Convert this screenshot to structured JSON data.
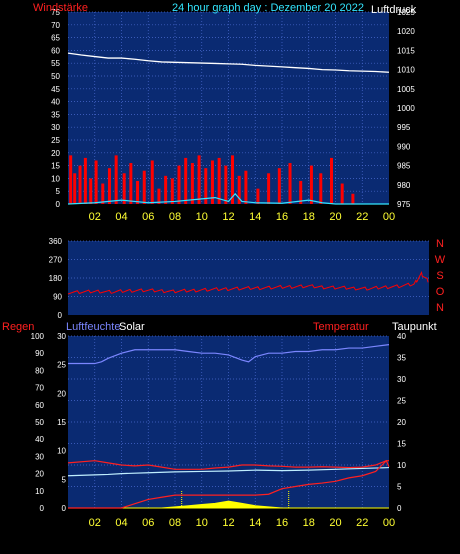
{
  "header": {
    "left_label": "Windstärke",
    "title": "24 hour graph day : Dezember 20 2022",
    "right_label": "Luftdruck"
  },
  "colors": {
    "background": "#000000",
    "plot_bg": "#0a2a72",
    "grid": "#4a6ad0",
    "axis_text": "#ffffff",
    "xtick_text": "#ffff33",
    "wind_label": "#ff2020",
    "title_text": "#33e6ff",
    "pressure": "#ffffff",
    "wind": "#ff0000",
    "gust_line": "#33e6ff",
    "direction": "#ff0000",
    "humidity": "#7b86ff",
    "solar": "#ffff00",
    "temperature": "#ff2020",
    "dewpoint": "#bfeeff"
  },
  "x_ticks": [
    "02",
    "04",
    "06",
    "08",
    "10",
    "12",
    "14",
    "16",
    "18",
    "20",
    "22",
    "00"
  ],
  "chart_data": [
    {
      "type": "line",
      "title": "24 hour graph day : Dezember 20 2022",
      "ylabel_left": "Windstärke",
      "ylabel_right": "Luftdruck",
      "x_range_hours": [
        0,
        24
      ],
      "yticks_left": [
        0,
        5,
        10,
        15,
        20,
        25,
        30,
        35,
        40,
        45,
        50,
        55,
        60,
        65,
        70,
        75
      ],
      "ylim_left": [
        0,
        75
      ],
      "yticks_right": [
        975,
        980,
        985,
        990,
        995,
        1000,
        1005,
        1010,
        1015,
        1020,
        1025
      ],
      "ylim_right": [
        975,
        1025
      ],
      "series": [
        {
          "name": "Luftdruck",
          "axis": "right",
          "x": [
            0,
            1,
            2,
            3,
            4,
            5,
            6,
            7,
            8,
            9,
            10,
            11,
            12,
            13,
            14,
            15,
            16,
            17,
            18,
            19,
            20,
            21,
            22,
            23,
            24
          ],
          "y": [
            1014.3,
            1013.8,
            1013.4,
            1013,
            1013,
            1012.7,
            1012.3,
            1012,
            1011.9,
            1011.8,
            1011.7,
            1011.6,
            1011.5,
            1011.4,
            1011.1,
            1010.9,
            1010.7,
            1010.5,
            1010.3,
            1010,
            1009.9,
            1009.7,
            1009.6,
            1009.5,
            1009.3
          ]
        },
        {
          "name": "Windstärke",
          "axis": "left",
          "style": "spikes",
          "x": [
            0.2,
            0.5,
            0.9,
            1.3,
            1.7,
            2.1,
            2.6,
            3.1,
            3.6,
            4.2,
            4.7,
            5.2,
            5.7,
            6.3,
            6.8,
            7.3,
            7.8,
            8.3,
            8.8,
            9.3,
            9.8,
            10.3,
            10.8,
            11.3,
            11.8,
            12.3,
            12.8,
            13.3,
            14.2,
            15.0,
            15.8,
            16.6,
            17.4,
            18.2,
            18.9,
            19.7,
            20.5,
            21.3
          ],
          "y": [
            19,
            12,
            15,
            18,
            10,
            17,
            8,
            14,
            19,
            12,
            16,
            9,
            13,
            17,
            6,
            11,
            10,
            15,
            18,
            16,
            19,
            14,
            17,
            18,
            15,
            19,
            11,
            13,
            6,
            12,
            14,
            16,
            9,
            15,
            12,
            18,
            8,
            4
          ]
        },
        {
          "name": "Gust baseline",
          "axis": "left",
          "x": [
            0,
            2,
            4,
            6,
            8,
            10,
            11,
            12,
            12.5,
            13,
            14,
            16,
            18,
            19,
            20,
            22,
            24
          ],
          "y": [
            0,
            0.5,
            1.5,
            0.5,
            1,
            2,
            2.5,
            1,
            4,
            1,
            0.5,
            0.3,
            1.5,
            0.5,
            0,
            0,
            0
          ]
        }
      ]
    },
    {
      "type": "line",
      "ylabel_right_letters": [
        "N",
        "W",
        "S",
        "O",
        "N"
      ],
      "x_range_hours": [
        0,
        24
      ],
      "yticks": [
        0,
        90,
        180,
        270,
        360
      ],
      "ylim": [
        0,
        360
      ],
      "series": [
        {
          "name": "Windrichtung",
          "x": [
            0,
            1,
            2,
            3,
            4,
            5,
            6,
            7,
            8,
            9,
            10,
            11,
            12,
            13,
            14,
            15,
            16,
            17,
            18,
            19,
            20,
            21,
            22,
            23,
            23.5,
            24
          ],
          "y": [
            110,
            112,
            115,
            112,
            118,
            120,
            118,
            115,
            118,
            122,
            125,
            128,
            130,
            132,
            135,
            138,
            140,
            135,
            133,
            130,
            128,
            135,
            140,
            150,
            200,
            160
          ]
        }
      ]
    },
    {
      "type": "line",
      "labels": {
        "regen": "Regen",
        "luftfeuchte": "Luftfeuchte",
        "solar": "Solar",
        "temperatur": "Temperatur",
        "taupunkt": "Taupunkt"
      },
      "x_range_hours": [
        0,
        24
      ],
      "yticks_far_left": [
        0,
        10,
        20,
        30,
        40,
        50,
        60,
        70,
        80,
        90,
        100
      ],
      "yticks_left": [
        0,
        5,
        10,
        15,
        20,
        25,
        30
      ],
      "ylim_left": [
        0,
        30
      ],
      "yticks_right": [
        0,
        5,
        10,
        15,
        20,
        25,
        30,
        35,
        40
      ],
      "ylim_right": [
        0,
        40
      ],
      "series": [
        {
          "name": "Luftfeuchte",
          "scale": "far_left",
          "x": [
            0,
            2,
            2.5,
            3,
            4,
            5,
            6,
            7,
            8,
            9,
            10,
            11,
            12,
            13,
            13.5,
            14,
            15,
            16,
            17,
            18,
            19,
            20,
            21,
            22,
            23,
            24
          ],
          "y": [
            84,
            84,
            85,
            87,
            90,
            92,
            92,
            92,
            92,
            91,
            90,
            90,
            89,
            86,
            85,
            88,
            90,
            90,
            91,
            91,
            92,
            92,
            93,
            93,
            94,
            95
          ]
        },
        {
          "name": "Temperatur",
          "axis": "right",
          "x": [
            0,
            2,
            3,
            4,
            5,
            6,
            7,
            8,
            9,
            10,
            11,
            12,
            13,
            14,
            15,
            16,
            17,
            18,
            19,
            20,
            21,
            22,
            23,
            23.8,
            24
          ],
          "y": [
            10.5,
            11,
            10.5,
            10,
            9.8,
            10,
            9.5,
            9,
            9,
            9,
            9.3,
            9.5,
            10,
            10,
            9.8,
            9.7,
            9.5,
            9.5,
            9.6,
            9.5,
            9.4,
            9.5,
            10,
            11,
            9.6
          ]
        },
        {
          "name": "Taupunkt",
          "axis": "right",
          "x": [
            0,
            2,
            3,
            4,
            6,
            8,
            10,
            12,
            14,
            16,
            18,
            20,
            22,
            24
          ],
          "y": [
            7.5,
            7.7,
            7.8,
            8,
            8.2,
            8.4,
            8.5,
            8.6,
            8.8,
            8.7,
            8.8,
            9,
            9.2,
            9.4
          ]
        },
        {
          "name": "Regen",
          "axis": "right",
          "x": [
            0,
            4,
            5,
            6,
            7,
            8,
            9,
            10,
            11,
            12,
            13,
            14,
            15,
            16,
            17,
            18,
            19,
            20,
            21,
            22,
            23,
            23.8,
            24
          ],
          "y": [
            0,
            0,
            1,
            2,
            2.5,
            3,
            3,
            3,
            3,
            3,
            3,
            3,
            3.2,
            4.5,
            5,
            5.5,
            5.8,
            6.2,
            7,
            7.5,
            8.5,
            11,
            11
          ]
        },
        {
          "name": "Solar",
          "axis": "left",
          "style": "area",
          "x": [
            0,
            7,
            8,
            9,
            10,
            11,
            12,
            13,
            14,
            15,
            16,
            24
          ],
          "y": [
            0,
            0,
            0.2,
            0.4,
            0.6,
            0.8,
            1.2,
            0.8,
            0.4,
            0.2,
            0,
            0
          ]
        }
      ],
      "markers_hours": [
        8.5,
        16.5
      ]
    }
  ]
}
